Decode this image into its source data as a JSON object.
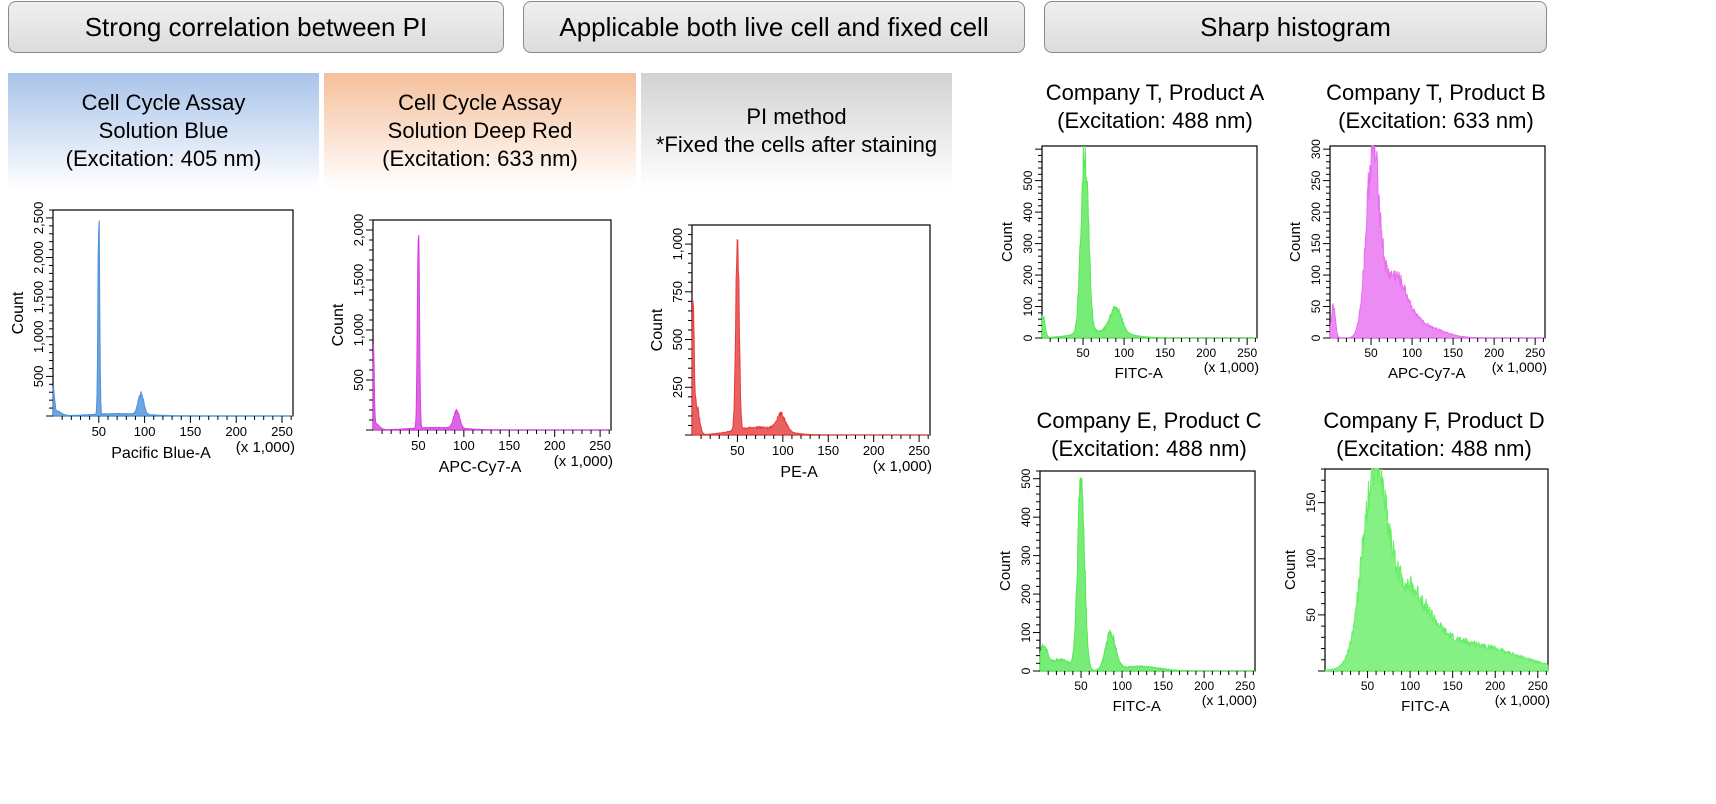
{
  "banners": {
    "correlation": "Strong correlation between PI",
    "applicable": "Applicable both live cell and fixed cell",
    "sharp": "Sharp histogram"
  },
  "columns": [
    {
      "line1": "Cell Cycle Assay",
      "line2": "Solution Blue",
      "line3": "(Excitation: 405 nm)"
    },
    {
      "line1": "Cell Cycle Assay",
      "line2": "Solution Deep Red",
      "line3": "(Excitation: 633 nm)"
    },
    {
      "line1": "PI method",
      "line2": "*Fixed the cells after staining",
      "line3": ""
    }
  ],
  "right_titles": [
    {
      "line1": "Company T, Product A",
      "line2": "(Excitation: 488 nm)"
    },
    {
      "line1": "Company T, Product B",
      "line2": "(Excitation: 633 nm)"
    },
    {
      "line1": "Company E, Product C",
      "line2": "(Excitation: 488 nm)"
    },
    {
      "line1": "Company F, Product D",
      "line2": "(Excitation: 488 nm)"
    }
  ],
  "chart_data": [
    {
      "type": "area",
      "id": "blue",
      "xlabel": "Pacific Blue-A",
      "xunit": "(x 1,000)",
      "ylabel": "Count",
      "xlim": [
        0,
        262
      ],
      "ylim": [
        0,
        2600
      ],
      "xticks": [
        "50",
        "100",
        "150",
        "200",
        "250"
      ],
      "yticks": [
        "500",
        "1,000",
        "1,500",
        "2,000",
        "2,500"
      ],
      "yticks_values": [
        500,
        1000,
        1500,
        2000,
        2500
      ],
      "color": "#4a90d9",
      "peaks": [
        {
          "x": 0.5,
          "y": 300,
          "w": 1.2
        },
        {
          "x": 4,
          "y": 60,
          "w": 5
        },
        {
          "x": 50,
          "y": 2600,
          "w": 0.9
        },
        {
          "x": 96,
          "y": 260,
          "w": 3.0
        },
        {
          "x": 72,
          "y": 30,
          "w": 30
        }
      ]
    },
    {
      "type": "area",
      "id": "deep-red",
      "xlabel": "APC-Cy7-A",
      "xunit": "(x 1,000)",
      "ylabel": "Count",
      "xlim": [
        0,
        262
      ],
      "ylim": [
        0,
        2100
      ],
      "xticks": [
        "50",
        "100",
        "150",
        "200",
        "250"
      ],
      "yticks": [
        "500",
        "1,000",
        "1,500",
        "2,000"
      ],
      "yticks_values": [
        500,
        1000,
        1500,
        2000
      ],
      "color": "#d63ee0",
      "peaks": [
        {
          "x": 0.5,
          "y": 750,
          "w": 0.9
        },
        {
          "x": 3,
          "y": 60,
          "w": 4
        },
        {
          "x": 50,
          "y": 2100,
          "w": 1.1
        },
        {
          "x": 92,
          "y": 180,
          "w": 3.2
        },
        {
          "x": 70,
          "y": 25,
          "w": 28
        }
      ]
    },
    {
      "type": "area",
      "id": "pi",
      "xlabel": "PE-A",
      "xunit": "(x 1,000)",
      "ylabel": "Count",
      "xlim": [
        0,
        262
      ],
      "ylim": [
        0,
        1100
      ],
      "xticks": [
        "50",
        "100",
        "150",
        "200",
        "250"
      ],
      "yticks": [
        "250",
        "500",
        "750",
        "1,000"
      ],
      "yticks_values": [
        250,
        500,
        750,
        1000
      ],
      "color": "#e63a3a",
      "peaks": [
        {
          "x": 1,
          "y": 650,
          "w": 1.3
        },
        {
          "x": 5,
          "y": 150,
          "w": 3
        },
        {
          "x": 50,
          "y": 1100,
          "w": 1.8
        },
        {
          "x": 98,
          "y": 85,
          "w": 5
        },
        {
          "x": 72,
          "y": 40,
          "w": 25
        }
      ]
    },
    {
      "type": "area",
      "id": "product-a",
      "xlabel": "FITC-A",
      "xunit": "(x 1,000)",
      "ylabel": "Count",
      "xlim": [
        0,
        262
      ],
      "ylim": [
        0,
        610
      ],
      "xticks": [
        "50",
        "100",
        "150",
        "200",
        "250"
      ],
      "yticks": [
        "0",
        "100",
        "200",
        "300",
        "400",
        "500"
      ],
      "yticks_values": [
        0,
        100,
        200,
        300,
        400,
        500
      ],
      "color": "#55e855",
      "peaks": [
        {
          "x": 1,
          "y": 70,
          "w": 2.5
        },
        {
          "x": 52,
          "y": 580,
          "w": 4.5
        },
        {
          "x": 90,
          "y": 80,
          "w": 7
        },
        {
          "x": 72,
          "y": 20,
          "w": 30
        }
      ]
    },
    {
      "type": "area",
      "id": "product-b",
      "xlabel": "APC-Cy7-A",
      "xunit": "(x 1,000)",
      "ylabel": "Count",
      "xlim": [
        0,
        262
      ],
      "ylim": [
        0,
        305
      ],
      "xticks": [
        "50",
        "100",
        "150",
        "200",
        "250"
      ],
      "yticks": [
        "0",
        "50",
        "100",
        "150",
        "200",
        "250",
        "300"
      ],
      "yticks_values": [
        0,
        50,
        100,
        150,
        200,
        250,
        300
      ],
      "color": "#e76ef0",
      "peaks": [
        {
          "x": 4,
          "y": 50,
          "w": 2.5
        },
        {
          "x": 52,
          "y": 280,
          "w": 8
        },
        {
          "x": 78,
          "y": 90,
          "w": 15
        },
        {
          "x": 110,
          "y": 20,
          "w": 25
        }
      ]
    },
    {
      "type": "area",
      "id": "product-c",
      "xlabel": "FITC-A",
      "xunit": "(x 1,000)",
      "ylabel": "Count",
      "xlim": [
        0,
        262
      ],
      "ylim": [
        0,
        520
      ],
      "xticks": [
        "50",
        "100",
        "150",
        "200",
        "250"
      ],
      "yticks": [
        "0",
        "100",
        "200",
        "300",
        "400",
        "500"
      ],
      "yticks_values": [
        0,
        100,
        200,
        300,
        400,
        500
      ],
      "color": "#55e855",
      "peaks": [
        {
          "x": 4,
          "y": 60,
          "w": 5
        },
        {
          "x": 50,
          "y": 500,
          "w": 4.2
        },
        {
          "x": 86,
          "y": 95,
          "w": 6
        },
        {
          "x": 25,
          "y": 30,
          "w": 12
        },
        {
          "x": 120,
          "y": 12,
          "w": 25
        }
      ]
    },
    {
      "type": "area",
      "id": "product-d",
      "xlabel": "FITC-A",
      "xunit": "(x 1,000)",
      "ylabel": "Count",
      "xlim": [
        0,
        262
      ],
      "ylim": [
        0,
        180
      ],
      "xticks": [
        "50",
        "100",
        "150",
        "200",
        "250"
      ],
      "yticks": [
        "50",
        "100",
        "150"
      ],
      "yticks_values": [
        50,
        100,
        150
      ],
      "color": "#66ee66",
      "peaks": [
        {
          "x": 58,
          "y": 160,
          "w": 14
        },
        {
          "x": 95,
          "y": 60,
          "w": 25
        },
        {
          "x": 160,
          "y": 25,
          "w": 60
        }
      ]
    }
  ]
}
